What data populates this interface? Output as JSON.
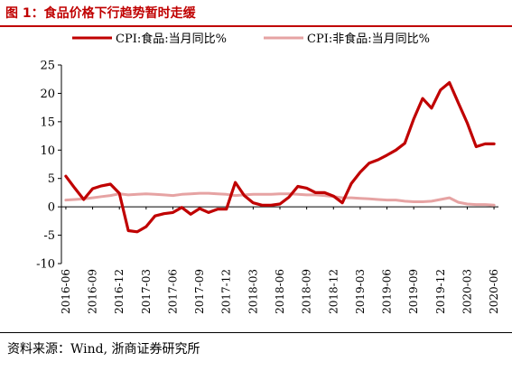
{
  "header": {
    "title": "图 1：食品价格下行趋势暂时走缓"
  },
  "footer": {
    "source": "资料来源：Wind, 浙商证券研究所"
  },
  "chart_data": {
    "type": "line",
    "title": "",
    "xlabel": "",
    "ylabel": "",
    "ylim": [
      -10,
      25
    ],
    "yticks": [
      "25",
      "20",
      "15",
      "10",
      "5",
      "0",
      "-5",
      "-10"
    ],
    "grid": false,
    "legend": "top",
    "x": [
      "2016-06",
      "2016-07",
      "2016-08",
      "2016-09",
      "2016-10",
      "2016-11",
      "2016-12",
      "2017-01",
      "2017-02",
      "2017-03",
      "2017-04",
      "2017-05",
      "2017-06",
      "2017-07",
      "2017-08",
      "2017-09",
      "2017-10",
      "2017-11",
      "2017-12",
      "2018-01",
      "2018-02",
      "2018-03",
      "2018-04",
      "2018-05",
      "2018-06",
      "2018-07",
      "2018-08",
      "2018-09",
      "2018-10",
      "2018-11",
      "2018-12",
      "2019-01",
      "2019-02",
      "2019-03",
      "2019-04",
      "2019-05",
      "2019-06",
      "2019-07",
      "2019-08",
      "2019-09",
      "2019-10",
      "2019-11",
      "2019-12",
      "2020-01",
      "2020-02",
      "2020-03",
      "2020-04",
      "2020-05",
      "2020-06"
    ],
    "xtick_labels": [
      "2016-06",
      "2016-09",
      "2016-12",
      "2017-03",
      "2017-06",
      "2017-09",
      "2017-12",
      "2018-03",
      "2018-06",
      "2018-09",
      "2018-12",
      "2019-03",
      "2019-06",
      "2019-09",
      "2019-12",
      "2020-03",
      "2020-06"
    ],
    "series": [
      {
        "name": "CPI:食品:当月同比%",
        "color": "#c00000",
        "values": [
          5.4,
          3.3,
          1.3,
          3.2,
          3.7,
          4.0,
          2.4,
          -4.2,
          -4.4,
          -3.5,
          -1.6,
          -1.2,
          -1.0,
          -0.1,
          -1.3,
          -0.3,
          -1.0,
          -0.4,
          -0.4,
          4.3,
          2.0,
          0.7,
          0.3,
          0.3,
          0.5,
          1.7,
          3.6,
          3.3,
          2.5,
          2.5,
          1.9,
          0.7,
          4.1,
          6.1,
          7.7,
          8.3,
          9.1,
          10.0,
          11.2,
          15.5,
          19.1,
          17.4,
          20.6,
          21.9,
          18.3,
          14.8,
          10.6,
          11.1,
          11.1
        ]
      },
      {
        "name": "CPI:非食品:当月同比%",
        "color": "#e6a3a3",
        "values": [
          1.2,
          1.3,
          1.4,
          1.6,
          1.8,
          2.0,
          2.3,
          2.1,
          2.2,
          2.3,
          2.2,
          2.1,
          2.0,
          2.2,
          2.3,
          2.4,
          2.4,
          2.3,
          2.2,
          2.0,
          2.1,
          2.2,
          2.2,
          2.2,
          2.3,
          2.3,
          2.2,
          2.1,
          2.1,
          2.0,
          1.8,
          1.6,
          1.6,
          1.5,
          1.4,
          1.3,
          1.2,
          1.2,
          1.0,
          0.9,
          0.9,
          1.0,
          1.3,
          1.6,
          0.8,
          0.5,
          0.4,
          0.4,
          0.3
        ]
      }
    ]
  }
}
